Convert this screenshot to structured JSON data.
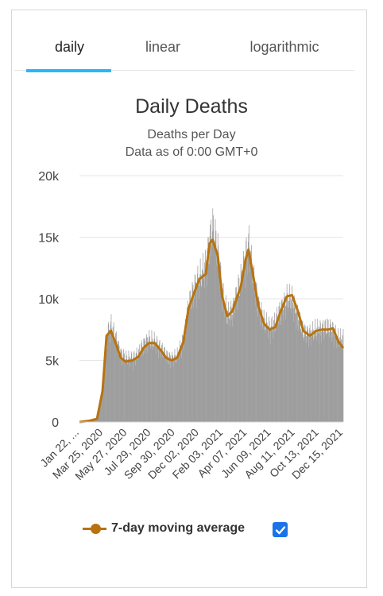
{
  "tabs": [
    {
      "label": "daily",
      "active": true
    },
    {
      "label": "linear",
      "active": false
    },
    {
      "label": "logarithmic",
      "active": false
    }
  ],
  "colors": {
    "accent": "#29b6f6",
    "bar": "#9e9e9e",
    "average": "#b8730e",
    "checkbox": "#1a73e8"
  },
  "legend": {
    "label": "7-day moving average",
    "checked": true
  },
  "chart_data": {
    "type": "bar",
    "title": "Daily Deaths",
    "subtitle": [
      "Deaths per Day",
      "Data as of 0:00 GMT+0"
    ],
    "xlabel": "",
    "ylabel": "",
    "ylim": [
      0,
      20000
    ],
    "yticks": [
      0,
      5000,
      10000,
      15000,
      20000
    ],
    "ytick_labels": [
      "0",
      "5k",
      "10k",
      "15k",
      "20k"
    ],
    "x_tick_labels": [
      "Jan 22, ...",
      "Mar 25, 2020",
      "May 27, 2020",
      "Jul 29, 2020",
      "Sep 30, 2020",
      "Dec 02, 2020",
      "Feb 03, 2021",
      "Apr 07, 2021",
      "Jun 09, 2021",
      "Aug 11, 2021",
      "Oct 13, 2021",
      "Dec 15, 2021"
    ],
    "grid": true,
    "legend_position": "bottom",
    "x_start": "Jan 22, 2020",
    "x_end": "Jan 12, 2022",
    "series": [
      {
        "name": "Daily deaths",
        "type": "bar",
        "x": [
          "Jan 22, 2020",
          "Feb 15, 2020",
          "Mar 10, 2020",
          "Mar 25, 2020",
          "Apr 05, 2020",
          "Apr 17, 2020",
          "Apr 30, 2020",
          "May 14, 2020",
          "May 27, 2020",
          "Jun 15, 2020",
          "Jul 01, 2020",
          "Jul 15, 2020",
          "Jul 29, 2020",
          "Aug 15, 2020",
          "Sep 01, 2020",
          "Sep 15, 2020",
          "Sep 30, 2020",
          "Oct 15, 2020",
          "Nov 01, 2020",
          "Nov 15, 2020",
          "Dec 02, 2020",
          "Dec 15, 2020",
          "Jan 01, 2021",
          "Jan 12, 2021",
          "Jan 20, 2021",
          "Feb 03, 2021",
          "Feb 15, 2021",
          "Mar 01, 2021",
          "Mar 15, 2021",
          "Apr 07, 2021",
          "Apr 20, 2021",
          "Apr 28, 2021",
          "May 10, 2021",
          "May 25, 2021",
          "Jun 09, 2021",
          "Jun 25, 2021",
          "Jul 10, 2021",
          "Jul 25, 2021",
          "Aug 11, 2021",
          "Aug 25, 2021",
          "Sep 10, 2021",
          "Sep 25, 2021",
          "Oct 13, 2021",
          "Oct 30, 2021",
          "Nov 15, 2021",
          "Dec 01, 2021",
          "Dec 15, 2021",
          "Dec 30, 2021",
          "Jan 12, 2022"
        ],
        "values": [
          30,
          90,
          300,
          3000,
          7400,
          8200,
          7000,
          5800,
          5400,
          5400,
          5800,
          6600,
          7000,
          6800,
          6200,
          5600,
          5400,
          5600,
          7000,
          9800,
          11500,
          12200,
          13200,
          15500,
          16500,
          14500,
          11000,
          9000,
          9500,
          12000,
          14000,
          15200,
          12500,
          10000,
          8500,
          8000,
          8400,
          9500,
          10500,
          10300,
          9000,
          7600,
          7500,
          7800,
          7900,
          8000,
          7800,
          7000,
          7100
        ]
      },
      {
        "name": "7-day moving average",
        "type": "line",
        "x": [
          "Jan 22, 2020",
          "Feb 15, 2020",
          "Mar 10, 2020",
          "Mar 25, 2020",
          "Apr 05, 2020",
          "Apr 17, 2020",
          "Apr 30, 2020",
          "May 14, 2020",
          "May 27, 2020",
          "Jun 15, 2020",
          "Jul 01, 2020",
          "Jul 15, 2020",
          "Jul 29, 2020",
          "Aug 15, 2020",
          "Sep 01, 2020",
          "Sep 15, 2020",
          "Sep 30, 2020",
          "Oct 15, 2020",
          "Nov 01, 2020",
          "Nov 15, 2020",
          "Dec 02, 2020",
          "Dec 15, 2020",
          "Jan 01, 2021",
          "Jan 12, 2021",
          "Jan 20, 2021",
          "Feb 03, 2021",
          "Feb 15, 2021",
          "Mar 01, 2021",
          "Mar 15, 2021",
          "Apr 07, 2021",
          "Apr 20, 2021",
          "Apr 28, 2021",
          "May 10, 2021",
          "May 25, 2021",
          "Jun 09, 2021",
          "Jun 25, 2021",
          "Jul 10, 2021",
          "Jul 25, 2021",
          "Aug 11, 2021",
          "Aug 25, 2021",
          "Sep 10, 2021",
          "Sep 25, 2021",
          "Oct 13, 2021",
          "Oct 30, 2021",
          "Nov 15, 2021",
          "Dec 01, 2021",
          "Dec 15, 2021",
          "Dec 30, 2021",
          "Jan 12, 2022"
        ],
        "values": [
          0,
          80,
          250,
          2500,
          7000,
          7400,
          6400,
          5200,
          4900,
          5000,
          5300,
          6000,
          6400,
          6400,
          5800,
          5200,
          5000,
          5200,
          6500,
          9200,
          10600,
          11600,
          12000,
          14500,
          14800,
          13500,
          10200,
          8600,
          9000,
          11000,
          13200,
          14000,
          12000,
          9400,
          8000,
          7500,
          7700,
          9000,
          10200,
          10300,
          9000,
          7400,
          7000,
          7400,
          7500,
          7500,
          7600,
          6500,
          6000
        ]
      }
    ]
  }
}
